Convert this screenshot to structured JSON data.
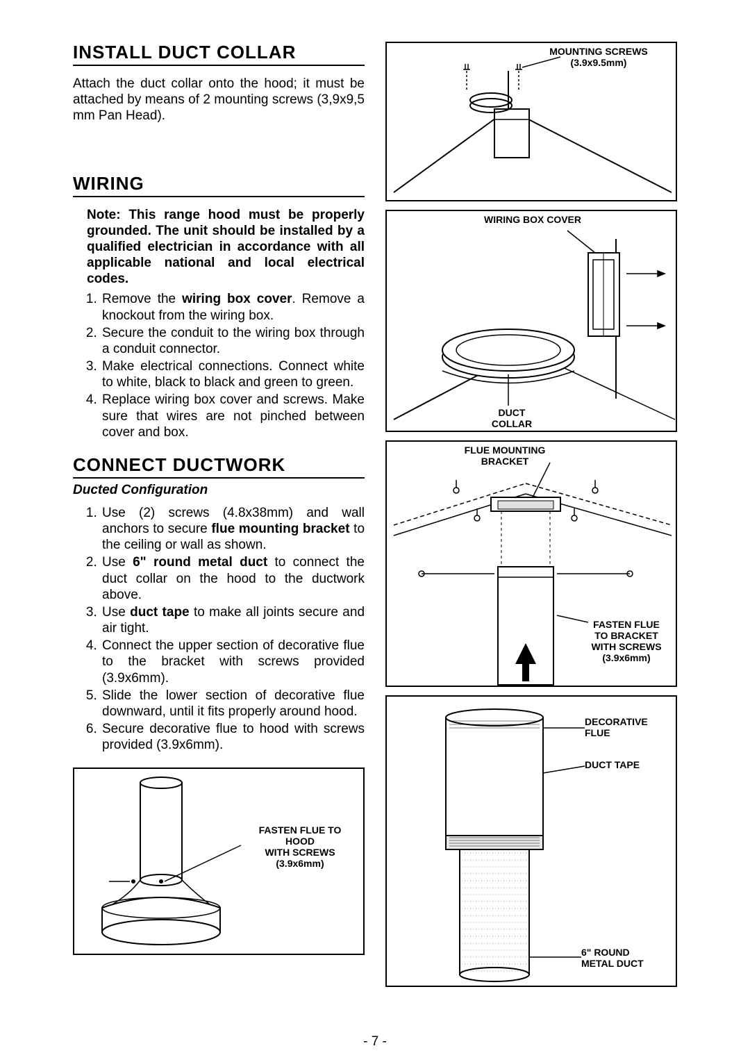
{
  "sections": {
    "install_duct_collar": {
      "title": "INSTALL DUCT COLLAR",
      "body": "Attach the duct collar onto the hood; it must be attached by means of 2 mounting screws (3,9x9,5 mm Pan Head)."
    },
    "wiring": {
      "title": "WIRING",
      "note": "Note: This range hood must be properly grounded. The unit should be installed by a qualified electrician in accordance with all applicable national and local electrical codes.",
      "steps": [
        "Remove the <b>wiring box cover</b>. Remove a knockout from the wiring box.",
        "Secure the conduit to the wiring box through a conduit connector.",
        "Make electrical connections. Connect white to white, black to black and green to green.",
        "Replace wiring box cover and screws. Make sure that wires are not pinched between cover and box."
      ]
    },
    "connect_ductwork": {
      "title": "CONNECT DUCTWORK",
      "subhead": "Ducted Configuration",
      "steps": [
        "Use (2) screws (4.8x38mm) and wall anchors to secure <b>flue mounting bracket</b> to the ceiling or wall as shown.",
        "Use <b>6\" round metal duct</b> to connect the duct collar on the hood to the ductwork above.",
        "Use <b>duct tape</b> to make all joints secure and air tight.",
        "Connect the upper section of decorative flue to the bracket with screws provided (3.9x6mm).",
        "Slide the lower section of decorative flue downward, until it fits properly around hood.",
        "Secure decorative flue to hood with screws provided (3.9x6mm)."
      ]
    }
  },
  "figures": {
    "fig1": {
      "caption": "MOUNTING SCREWS\n(3.9x9.5mm)"
    },
    "fig2": {
      "top_caption": "WIRING BOX COVER",
      "bottom_caption": "DUCT\nCOLLAR"
    },
    "fig3": {
      "top_caption": "FLUE MOUNTING\nBRACKET",
      "side_caption": "FASTEN FLUE\nTO BRACKET\nWITH SCREWS\n(3.9x6mm)"
    },
    "fig4": {
      "c1": "DECORATIVE\nFLUE",
      "c2": "DUCT TAPE",
      "c3": "6\" ROUND\nMETAL DUCT"
    },
    "fig5": {
      "caption": "FASTEN FLUE TO\nHOOD\nWITH SCREWS\n(3.9x6mm)"
    }
  },
  "page_number": "- 7 -",
  "colors": {
    "text": "#000000",
    "background": "#ffffff",
    "rule": "#000000"
  },
  "typography": {
    "heading_fontsize": 26,
    "body_fontsize": 19,
    "caption_fontsize": 14,
    "font_family": "Arial"
  }
}
